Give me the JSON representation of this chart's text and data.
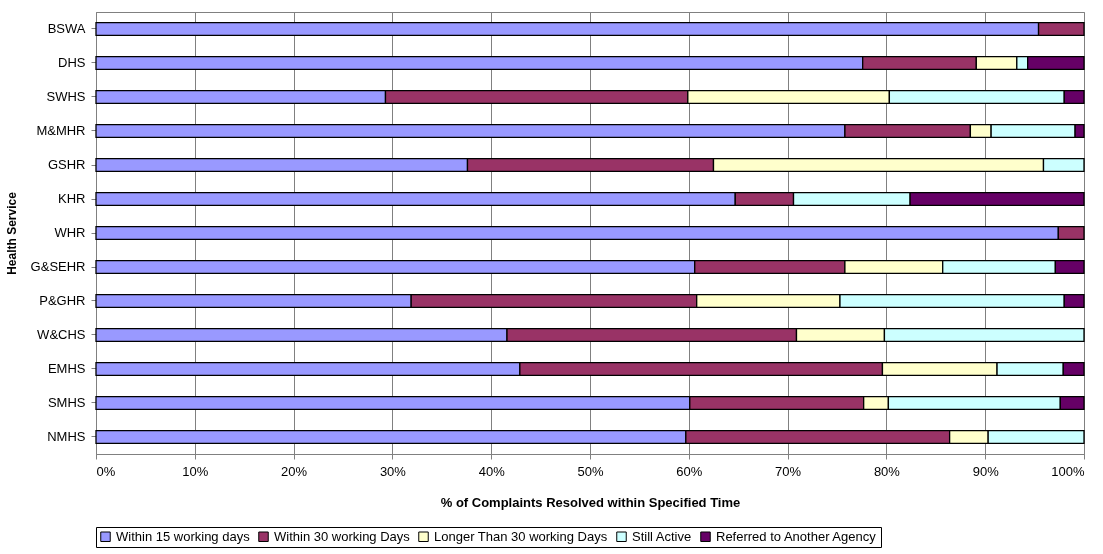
{
  "chart_data": {
    "type": "bar",
    "orientation": "horizontal",
    "stacked": true,
    "xlabel": "% of Complaints Resolved within Specified Time",
    "ylabel": "Health Service",
    "categories": [
      "BSWA",
      "DHS",
      "SWHS",
      "M&MHR",
      "GSHR",
      "KHR",
      "WHR",
      "G&SEHR",
      "P&GHR",
      "W&CHS",
      "EMHS",
      "SMHS",
      "NMHS"
    ],
    "series": [
      {
        "name": "Within 15 working days",
        "color": "#9999ff",
        "values": [
          95.4,
          77.6,
          29.3,
          75.8,
          37.6,
          64.7,
          97.4,
          60.6,
          31.9,
          41.6,
          42.9,
          60.1,
          59.7
        ]
      },
      {
        "name": "Within 30 working Days",
        "color": "#993366",
        "values": [
          4.6,
          11.5,
          30.6,
          12.7,
          24.9,
          5.9,
          2.6,
          15.2,
          28.9,
          29.3,
          36.7,
          17.6,
          26.7
        ]
      },
      {
        "name": "Longer Than 30 working Days",
        "color": "#ffffcc",
        "values": [
          null,
          4.1,
          20.4,
          2.1,
          33.4,
          null,
          null,
          9.9,
          14.5,
          8.9,
          11.6,
          2.5,
          3.9
        ]
      },
      {
        "name": "Still Active",
        "color": "#ccffff",
        "values": [
          null,
          1.1,
          17.7,
          8.5,
          4.1,
          11.8,
          null,
          11.4,
          22.7,
          20.2,
          6.7,
          17.4,
          9.7
        ]
      },
      {
        "name": "Referred to Another Agency",
        "color": "#660066",
        "values": [
          null,
          5.7,
          2.0,
          0.9,
          null,
          17.6,
          null,
          2.9,
          2.0,
          null,
          2.1,
          2.4,
          null
        ]
      }
    ],
    "xlim": [
      0,
      100
    ],
    "xticks": [
      {
        "value": 0,
        "label": "0%"
      },
      {
        "value": 10,
        "label": "10%"
      },
      {
        "value": 20,
        "label": "20%"
      },
      {
        "value": 30,
        "label": "30%"
      },
      {
        "value": 40,
        "label": "40%"
      },
      {
        "value": 50,
        "label": "50%"
      },
      {
        "value": 60,
        "label": "60%"
      },
      {
        "value": 70,
        "label": "70%"
      },
      {
        "value": 80,
        "label": "80%"
      },
      {
        "value": 90,
        "label": "90%"
      },
      {
        "value": 100,
        "label": "100%"
      }
    ],
    "grid": "x",
    "legend": "bottom"
  }
}
